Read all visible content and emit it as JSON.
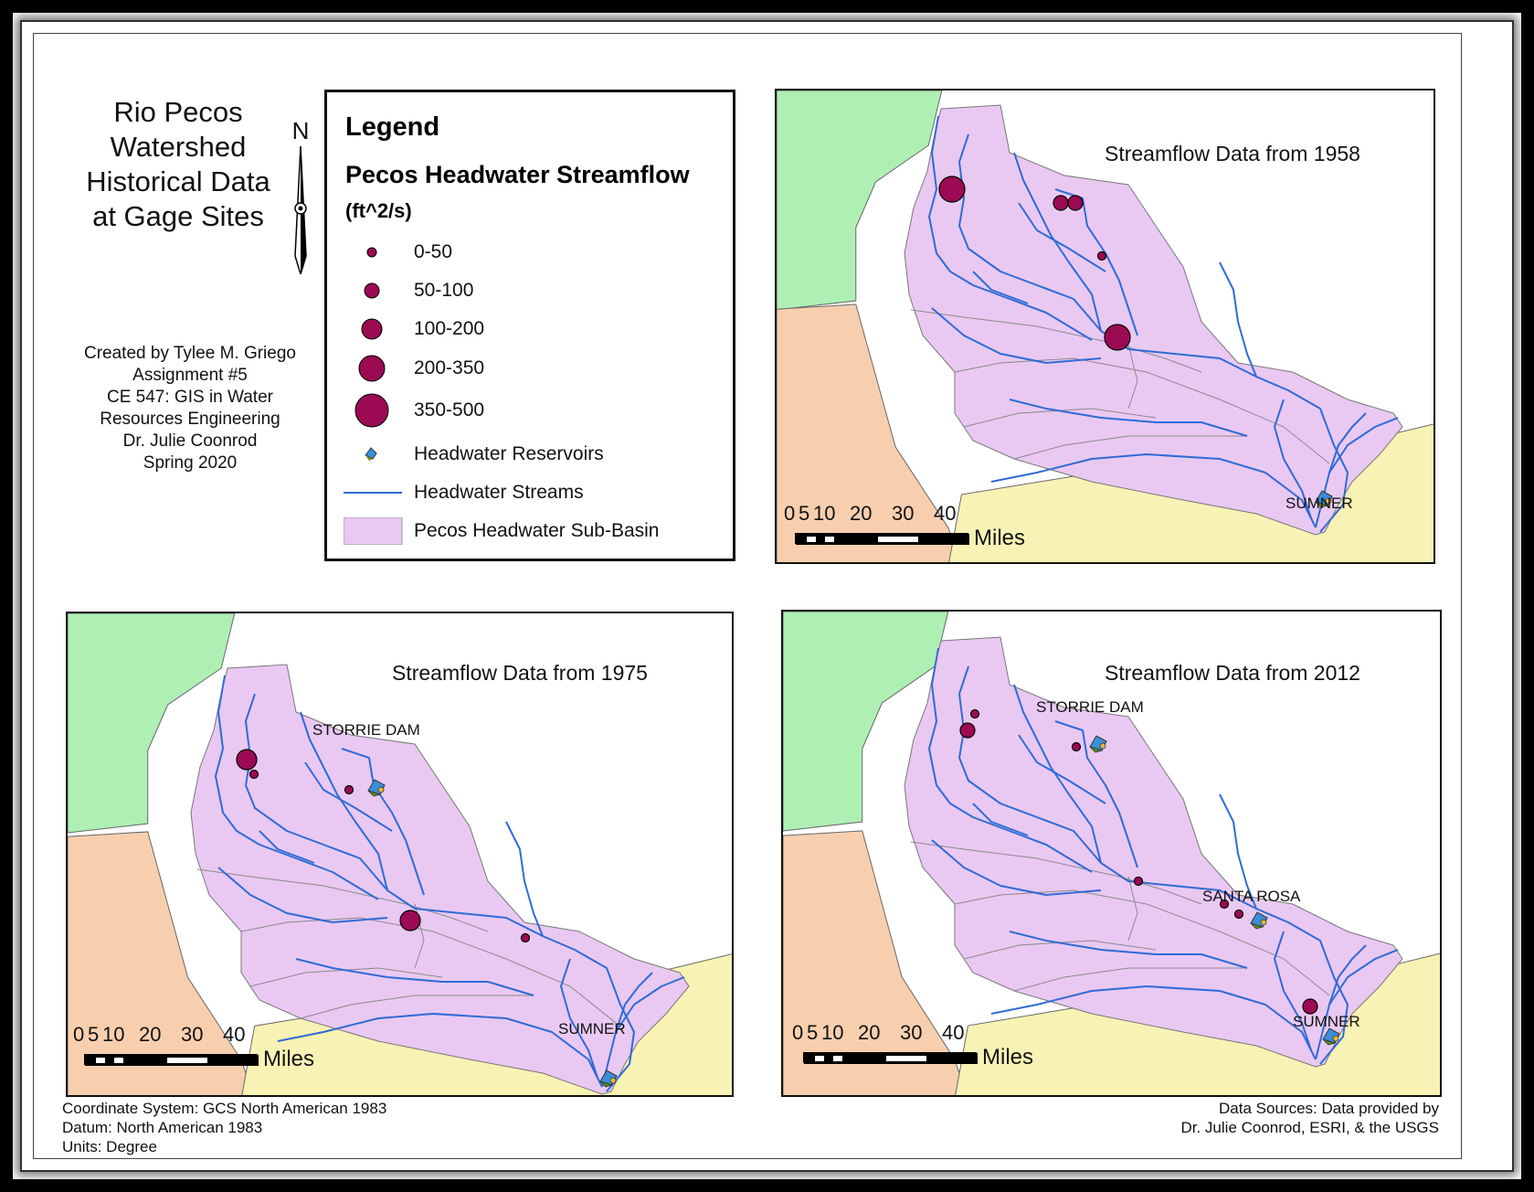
{
  "title": [
    "Rio Pecos",
    "Watershed",
    "Historical Data",
    "at Gage Sites"
  ],
  "north_label": "N",
  "credits": [
    "Created by Tylee M. Griego",
    "Assignment #5",
    "CE 547: GIS in Water",
    "Resources Engineering",
    "Dr. Julie Coonrod",
    "Spring 2020"
  ],
  "legend": {
    "title": "Legend",
    "subtitle": "Pecos Headwater Streamflow",
    "unit": "(ft^2/s)",
    "classes": [
      "0-50",
      "50-100",
      "100-200",
      "200-350",
      "350-500"
    ],
    "reservoirs": "Headwater Reservoirs",
    "streams": "Headwater Streams",
    "subbasin": "Pecos Headwater Sub-Basin"
  },
  "panels": [
    {
      "title": "Streamflow Data from 1958",
      "labels": [
        "SUMNER"
      ],
      "gages": [
        {
          "site": "gage-a",
          "class": "200-350"
        },
        {
          "site": "gage-b",
          "class": "50-100"
        },
        {
          "site": "gage-c",
          "class": "50-100"
        },
        {
          "site": "gage-d",
          "class": "0-50"
        },
        {
          "site": "gage-e",
          "class": "200-350"
        }
      ]
    },
    {
      "title": "Streamflow Data from 1975",
      "labels": [
        "STORRIE DAM",
        "SUMNER"
      ],
      "gages": [
        {
          "site": "gage-a",
          "class": "100-200"
        },
        {
          "site": "gage-b",
          "class": "0-50"
        },
        {
          "site": "gage-c",
          "class": "0-50"
        },
        {
          "site": "gage-d",
          "class": "100-200"
        },
        {
          "site": "gage-e",
          "class": "0-50"
        }
      ]
    },
    {
      "title": "Streamflow Data from 2012",
      "labels": [
        "STORRIE DAM",
        "SANTA ROSA",
        "SUMNER"
      ],
      "gages": [
        {
          "site": "gage-a",
          "class": "0-50"
        },
        {
          "site": "gage-b",
          "class": "50-100"
        },
        {
          "site": "gage-c",
          "class": "0-50"
        },
        {
          "site": "gage-d",
          "class": "0-50"
        },
        {
          "site": "gage-e",
          "class": "0-50"
        },
        {
          "site": "gage-f",
          "class": "0-50"
        },
        {
          "site": "gage-g",
          "class": "50-100"
        }
      ]
    }
  ],
  "scale": {
    "ticks": [
      "0",
      "5",
      "10",
      "20",
      "30",
      "40"
    ],
    "unit": "Miles"
  },
  "footer_left": [
    "Coordinate System: GCS North American 1983",
    "Datum: North American 1983",
    "Units: Degree"
  ],
  "footer_right": [
    "Data Sources: Data provided by",
    "Dr. Julie Coonrod, ESRI, & the USGS"
  ],
  "colors": {
    "gage": "#9b0a52",
    "subbasin": "#e9c9f2",
    "stream": "#2f6bd6",
    "north_region": "#aef0b4",
    "west_region": "#f8cfae",
    "south_region": "#f8f2b4"
  }
}
